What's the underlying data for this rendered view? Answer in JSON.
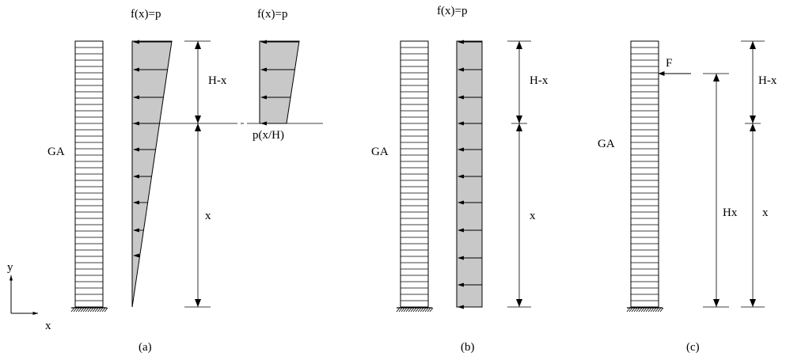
{
  "panels": {
    "a": {
      "caption": "(a)",
      "label_ga": "GA",
      "label_load_top": "f(x)=p",
      "label_load_top_cut": "f(x)=p",
      "label_load_cut": "p(x/H)",
      "dim_upper": "H-x",
      "dim_lower": "x"
    },
    "b": {
      "caption": "(b)",
      "label_ga": "GA",
      "label_load_top": "f(x)=p",
      "dim_upper": "H-x",
      "dim_lower": "x"
    },
    "c": {
      "caption": "(c)",
      "label_ga": "GA",
      "label_force": "F",
      "dim_upper": "H-x",
      "dim_lower": "x",
      "dim_total": "Hx"
    }
  },
  "axes": {
    "y_label": "y",
    "x_label": "x"
  }
}
